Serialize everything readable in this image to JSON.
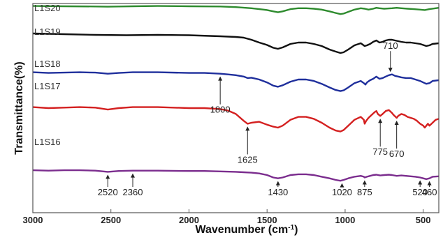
{
  "chart_data": {
    "type": "line",
    "title": "",
    "xlabel": "Wavenumber (cm⁻¹)",
    "xlabel_main": "Wavenumber (cm",
    "xlabel_sup": "-1",
    "xlabel_close": ")",
    "ylabel": "Transmittance(%)",
    "xlim": [
      3000,
      400
    ],
    "x_reversed": true,
    "x_ticks": [
      "3000",
      "2500",
      "2000",
      "1500",
      "1000",
      "500"
    ],
    "grid": false,
    "legend": "inline labels at left",
    "series": [
      {
        "name": "L1S20",
        "color": "#2e8b2e",
        "points": [
          [
            3000,
            98
          ],
          [
            2800,
            97
          ],
          [
            2600,
            96
          ],
          [
            2520,
            95
          ],
          [
            2450,
            96
          ],
          [
            2360,
            97
          ],
          [
            2200,
            98
          ],
          [
            2000,
            97
          ],
          [
            1800,
            96
          ],
          [
            1700,
            93
          ],
          [
            1600,
            88
          ],
          [
            1550,
            84
          ],
          [
            1500,
            80
          ],
          [
            1460,
            74
          ],
          [
            1430,
            70
          ],
          [
            1400,
            74
          ],
          [
            1350,
            84
          ],
          [
            1300,
            88
          ],
          [
            1250,
            88
          ],
          [
            1200,
            86
          ],
          [
            1150,
            82
          ],
          [
            1100,
            74
          ],
          [
            1060,
            67
          ],
          [
            1030,
            62
          ],
          [
            1010,
            64
          ],
          [
            980,
            72
          ],
          [
            940,
            82
          ],
          [
            900,
            88
          ],
          [
            875,
            86
          ],
          [
            850,
            82
          ],
          [
            820,
            86
          ],
          [
            800,
            90
          ],
          [
            780,
            88
          ],
          [
            750,
            86
          ],
          [
            700,
            88
          ],
          [
            670,
            90
          ],
          [
            640,
            88
          ],
          [
            600,
            86
          ],
          [
            560,
            84
          ],
          [
            520,
            82
          ],
          [
            490,
            80
          ],
          [
            460,
            84
          ],
          [
            420,
            88
          ],
          [
            400,
            90
          ]
        ]
      },
      {
        "name": "L1S19",
        "color": "#111111",
        "points": [
          [
            3000,
            88
          ],
          [
            2800,
            86
          ],
          [
            2600,
            84
          ],
          [
            2400,
            83
          ],
          [
            2200,
            84
          ],
          [
            2000,
            83
          ],
          [
            1800,
            80
          ],
          [
            1700,
            78
          ],
          [
            1650,
            76
          ],
          [
            1600,
            70
          ],
          [
            1550,
            62
          ],
          [
            1500,
            55
          ],
          [
            1460,
            47
          ],
          [
            1430,
            44
          ],
          [
            1400,
            48
          ],
          [
            1350,
            58
          ],
          [
            1300,
            62
          ],
          [
            1250,
            62
          ],
          [
            1200,
            58
          ],
          [
            1150,
            52
          ],
          [
            1100,
            42
          ],
          [
            1060,
            36
          ],
          [
            1030,
            32
          ],
          [
            1010,
            34
          ],
          [
            980,
            42
          ],
          [
            940,
            54
          ],
          [
            900,
            60
          ],
          [
            875,
            52
          ],
          [
            860,
            54
          ],
          [
            840,
            58
          ],
          [
            820,
            64
          ],
          [
            800,
            68
          ],
          [
            780,
            62
          ],
          [
            760,
            64
          ],
          [
            740,
            68
          ],
          [
            720,
            70
          ],
          [
            700,
            70
          ],
          [
            680,
            68
          ],
          [
            660,
            66
          ],
          [
            640,
            64
          ],
          [
            610,
            62
          ],
          [
            580,
            62
          ],
          [
            550,
            60
          ],
          [
            520,
            58
          ],
          [
            500,
            55
          ],
          [
            480,
            52
          ],
          [
            460,
            54
          ],
          [
            440,
            58
          ],
          [
            400,
            60
          ]
        ]
      },
      {
        "name": "L1S18",
        "color": "#1f2f9c",
        "points": [
          [
            3000,
            70
          ],
          [
            2900,
            68
          ],
          [
            2800,
            69
          ],
          [
            2700,
            70
          ],
          [
            2600,
            69
          ],
          [
            2520,
            66
          ],
          [
            2450,
            68
          ],
          [
            2360,
            70
          ],
          [
            2200,
            70
          ],
          [
            2000,
            68
          ],
          [
            1900,
            68
          ],
          [
            1800,
            66
          ],
          [
            1750,
            64
          ],
          [
            1700,
            62
          ],
          [
            1650,
            58
          ],
          [
            1625,
            54
          ],
          [
            1600,
            55
          ],
          [
            1550,
            50
          ],
          [
            1500,
            42
          ],
          [
            1460,
            33
          ],
          [
            1430,
            30
          ],
          [
            1400,
            34
          ],
          [
            1350,
            44
          ],
          [
            1300,
            50
          ],
          [
            1250,
            50
          ],
          [
            1200,
            46
          ],
          [
            1150,
            38
          ],
          [
            1100,
            28
          ],
          [
            1060,
            21
          ],
          [
            1030,
            18
          ],
          [
            1010,
            20
          ],
          [
            980,
            28
          ],
          [
            940,
            40
          ],
          [
            900,
            46
          ],
          [
            880,
            40
          ],
          [
            870,
            36
          ],
          [
            860,
            42
          ],
          [
            840,
            48
          ],
          [
            820,
            52
          ],
          [
            800,
            58
          ],
          [
            780,
            52
          ],
          [
            760,
            54
          ],
          [
            740,
            58
          ],
          [
            720,
            62
          ],
          [
            700,
            64
          ],
          [
            680,
            60
          ],
          [
            660,
            58
          ],
          [
            640,
            56
          ],
          [
            610,
            54
          ],
          [
            580,
            54
          ],
          [
            550,
            50
          ],
          [
            520,
            46
          ],
          [
            500,
            42
          ],
          [
            480,
            38
          ],
          [
            460,
            40
          ],
          [
            440,
            46
          ],
          [
            400,
            48
          ]
        ]
      },
      {
        "name": "L1S17",
        "color": "#d42020",
        "points": [
          [
            3000,
            52
          ],
          [
            2900,
            50
          ],
          [
            2800,
            51
          ],
          [
            2700,
            52
          ],
          [
            2600,
            51
          ],
          [
            2520,
            47
          ],
          [
            2450,
            50
          ],
          [
            2360,
            52
          ],
          [
            2200,
            52
          ],
          [
            2000,
            50
          ],
          [
            1900,
            50
          ],
          [
            1800,
            48
          ],
          [
            1750,
            45
          ],
          [
            1700,
            38
          ],
          [
            1650,
            24
          ],
          [
            1625,
            18
          ],
          [
            1600,
            20
          ],
          [
            1550,
            22
          ],
          [
            1500,
            16
          ],
          [
            1460,
            12
          ],
          [
            1430,
            10
          ],
          [
            1400,
            14
          ],
          [
            1350,
            26
          ],
          [
            1300,
            32
          ],
          [
            1250,
            32
          ],
          [
            1200,
            28
          ],
          [
            1150,
            20
          ],
          [
            1100,
            10
          ],
          [
            1060,
            4
          ],
          [
            1030,
            2
          ],
          [
            1010,
            5
          ],
          [
            980,
            14
          ],
          [
            940,
            26
          ],
          [
            900,
            32
          ],
          [
            880,
            26
          ],
          [
            875,
            18
          ],
          [
            865,
            24
          ],
          [
            850,
            30
          ],
          [
            830,
            36
          ],
          [
            810,
            42
          ],
          [
            800,
            44
          ],
          [
            790,
            38
          ],
          [
            775,
            34
          ],
          [
            760,
            38
          ],
          [
            740,
            44
          ],
          [
            720,
            46
          ],
          [
            700,
            40
          ],
          [
            690,
            36
          ],
          [
            670,
            30
          ],
          [
            660,
            34
          ],
          [
            640,
            38
          ],
          [
            620,
            36
          ],
          [
            600,
            32
          ],
          [
            580,
            30
          ],
          [
            560,
            28
          ],
          [
            540,
            24
          ],
          [
            520,
            18
          ],
          [
            500,
            14
          ],
          [
            490,
            10
          ],
          [
            480,
            14
          ],
          [
            470,
            18
          ],
          [
            460,
            14
          ],
          [
            440,
            20
          ],
          [
            420,
            26
          ],
          [
            400,
            28
          ]
        ]
      },
      {
        "name": "L1S16",
        "color": "#7b2d8e",
        "points": [
          [
            3000,
            24
          ],
          [
            2900,
            23
          ],
          [
            2800,
            24
          ],
          [
            2700,
            24
          ],
          [
            2600,
            23
          ],
          [
            2520,
            20
          ],
          [
            2450,
            22
          ],
          [
            2360,
            23
          ],
          [
            2200,
            23
          ],
          [
            2000,
            22
          ],
          [
            1900,
            22
          ],
          [
            1800,
            21
          ],
          [
            1700,
            20
          ],
          [
            1650,
            19
          ],
          [
            1600,
            18
          ],
          [
            1550,
            16
          ],
          [
            1500,
            12
          ],
          [
            1460,
            6
          ],
          [
            1430,
            4
          ],
          [
            1400,
            6
          ],
          [
            1350,
            12
          ],
          [
            1300,
            14
          ],
          [
            1250,
            14
          ],
          [
            1200,
            12
          ],
          [
            1150,
            8
          ],
          [
            1100,
            4
          ],
          [
            1060,
            0
          ],
          [
            1030,
            -2
          ],
          [
            1010,
            0
          ],
          [
            980,
            4
          ],
          [
            940,
            8
          ],
          [
            900,
            10
          ],
          [
            880,
            8
          ],
          [
            875,
            6
          ],
          [
            860,
            8
          ],
          [
            840,
            10
          ],
          [
            820,
            12
          ],
          [
            800,
            13
          ],
          [
            775,
            11
          ],
          [
            750,
            12
          ],
          [
            720,
            13
          ],
          [
            700,
            12
          ],
          [
            670,
            10
          ],
          [
            640,
            11
          ],
          [
            610,
            10
          ],
          [
            580,
            9
          ],
          [
            550,
            8
          ],
          [
            520,
            6
          ],
          [
            500,
            4
          ],
          [
            480,
            2
          ],
          [
            460,
            4
          ],
          [
            440,
            8
          ],
          [
            400,
            9
          ]
        ]
      }
    ],
    "annotations": [
      {
        "label": "2520",
        "x": 2520,
        "arrow": "up",
        "on": "L1S16"
      },
      {
        "label": "2360",
        "x": 2360,
        "arrow": "up",
        "on": "L1S16"
      },
      {
        "label": "1800",
        "x": 1800,
        "arrow": "up",
        "on": "L1S18"
      },
      {
        "label": "1625",
        "x": 1625,
        "arrow": "up",
        "on": "L1S17"
      },
      {
        "label": "1430",
        "x": 1430,
        "arrow": "up",
        "on": "L1S16"
      },
      {
        "label": "1020",
        "x": 1020,
        "arrow": "up",
        "on": "L1S16"
      },
      {
        "label": "875",
        "x": 875,
        "arrow": "up",
        "on": "L1S16"
      },
      {
        "label": "775",
        "x": 775,
        "arrow": "up",
        "on": "L1S17"
      },
      {
        "label": "710",
        "x": 710,
        "arrow": "down",
        "on": "L1S18"
      },
      {
        "label": "670",
        "x": 670,
        "arrow": "up",
        "on": "L1S17"
      },
      {
        "label": "520",
        "x": 520,
        "arrow": "up",
        "on": "L1S16"
      },
      {
        "label": "460",
        "x": 460,
        "arrow": "up",
        "on": "L1S16"
      }
    ]
  }
}
